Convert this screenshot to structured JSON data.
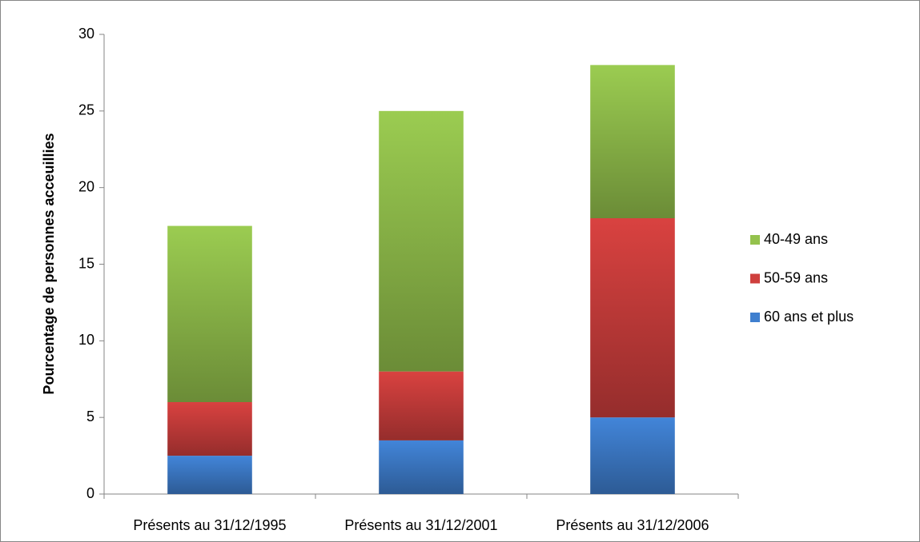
{
  "chart_data": {
    "type": "stacked_bar",
    "y_label": "Pourcentage de personnes acceuillies",
    "categories": [
      "Présents au 31/12/1995",
      "Présents au 31/12/2001",
      "Présents au 31/12/2006"
    ],
    "series": [
      {
        "name": "60 ans et plus",
        "color": "#3f7fcf",
        "values": [
          2.5,
          3.5,
          5
        ]
      },
      {
        "name": "50-59 ans",
        "color": "#cf3f3d",
        "values": [
          3.5,
          4.5,
          13
        ]
      },
      {
        "name": "40-49 ans",
        "color": "#94c24d",
        "values": [
          11.5,
          17,
          10
        ]
      }
    ],
    "ylim": [
      0,
      30
    ],
    "yticks": [
      0,
      5,
      10,
      15,
      20,
      25,
      30
    ],
    "grid": false,
    "legend": "right"
  }
}
